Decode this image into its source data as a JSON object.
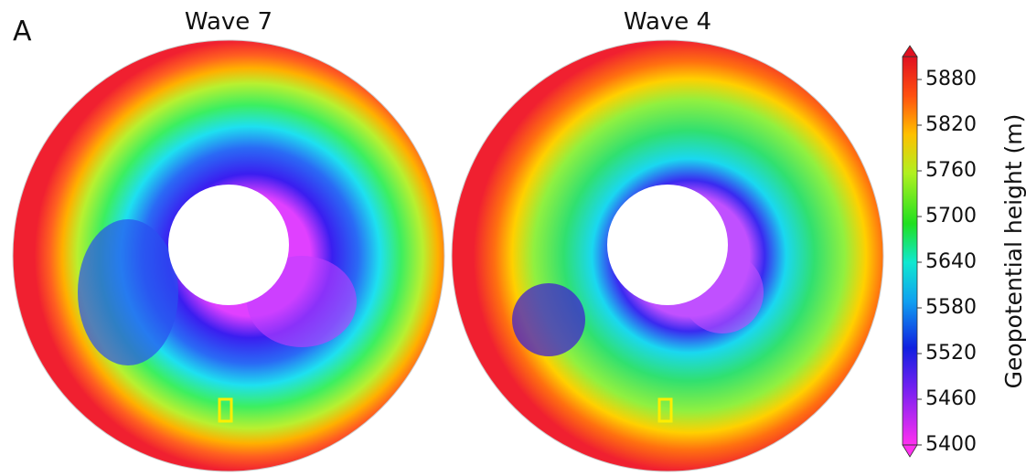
{
  "panel_label": "A",
  "maps": [
    {
      "title": "Wave 7"
    },
    {
      "title": "Wave 4"
    }
  ],
  "colorbar": {
    "label": "Geopotential height (m)",
    "lim": [
      5400,
      5910
    ],
    "ticks": [
      5400,
      5460,
      5520,
      5580,
      5640,
      5700,
      5760,
      5820,
      5880
    ]
  }
}
